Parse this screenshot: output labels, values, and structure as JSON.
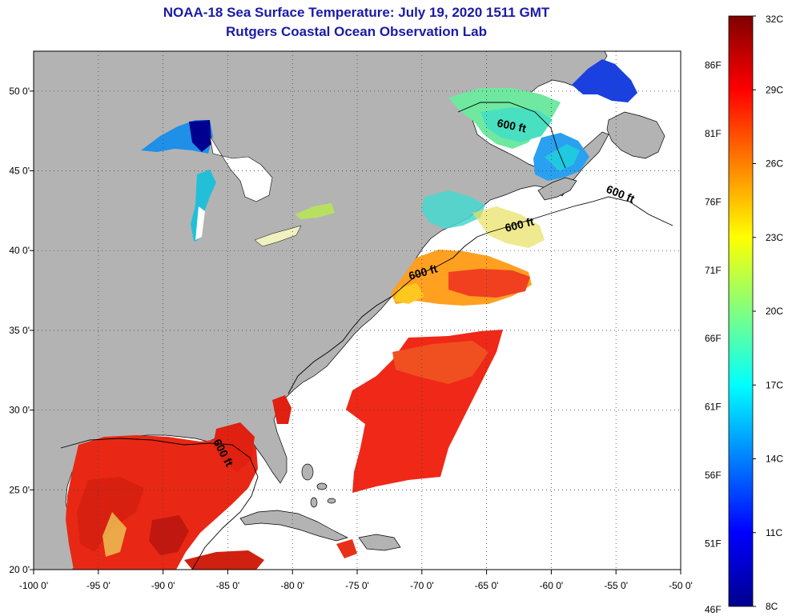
{
  "title": {
    "line1": "NOAA-18 Sea Surface Temperature:  July 19, 2020 1511 GMT",
    "line2": "Rutgers Coastal Ocean Observation Lab"
  },
  "map": {
    "lon_range": [
      -100,
      -50
    ],
    "lat_range": [
      20,
      52.5
    ],
    "x_ticks": [
      {
        "lon": -100,
        "label": "-100 0'"
      },
      {
        "lon": -95,
        "label": "-95 0'"
      },
      {
        "lon": -90,
        "label": "-90 0'"
      },
      {
        "lon": -85,
        "label": "-85 0'"
      },
      {
        "lon": -80,
        "label": "-80 0'"
      },
      {
        "lon": -75,
        "label": "-75 0'"
      },
      {
        "lon": -70,
        "label": "-70 0'"
      },
      {
        "lon": -65,
        "label": "-65 0'"
      },
      {
        "lon": -60,
        "label": "-60 0'"
      },
      {
        "lon": -55,
        "label": "-55 0'"
      },
      {
        "lon": -50,
        "label": "-50 0'"
      }
    ],
    "y_ticks": [
      {
        "lat": 20,
        "label": "20 0'"
      },
      {
        "lat": 25,
        "label": "25 0'"
      },
      {
        "lat": 30,
        "label": "30 0'"
      },
      {
        "lat": 35,
        "label": "35 0'"
      },
      {
        "lat": 40,
        "label": "40 0'"
      },
      {
        "lat": 45,
        "label": "45 0'"
      },
      {
        "lat": 50,
        "label": "50 0'"
      }
    ],
    "contour_labels": [
      "600 ft",
      "600 ft",
      "600 ft",
      "600 ft",
      "600 ft"
    ],
    "colors": {
      "land": "#b3b3b3",
      "ocean_nodata": "#ffffff",
      "gridline": "#444444"
    }
  },
  "colorbar": {
    "c_labels": [
      "32C",
      "29C",
      "26C",
      "23C",
      "20C",
      "17C",
      "14C",
      "11C",
      "8C"
    ],
    "c_values": [
      32,
      29,
      26,
      23,
      20,
      17,
      14,
      11,
      8
    ],
    "f_labels": [
      "86F",
      "81F",
      "76F",
      "71F",
      "66F",
      "61F",
      "56F",
      "51F",
      "46F"
    ],
    "f_values": [
      86,
      81,
      76,
      71,
      66,
      61,
      56,
      51,
      46
    ],
    "range_c": [
      8,
      32
    ],
    "stops": [
      "#00008f",
      "#0000ff",
      "#0080ff",
      "#00ffff",
      "#80ff80",
      "#ffff00",
      "#ff8000",
      "#ff0000",
      "#800000"
    ]
  }
}
